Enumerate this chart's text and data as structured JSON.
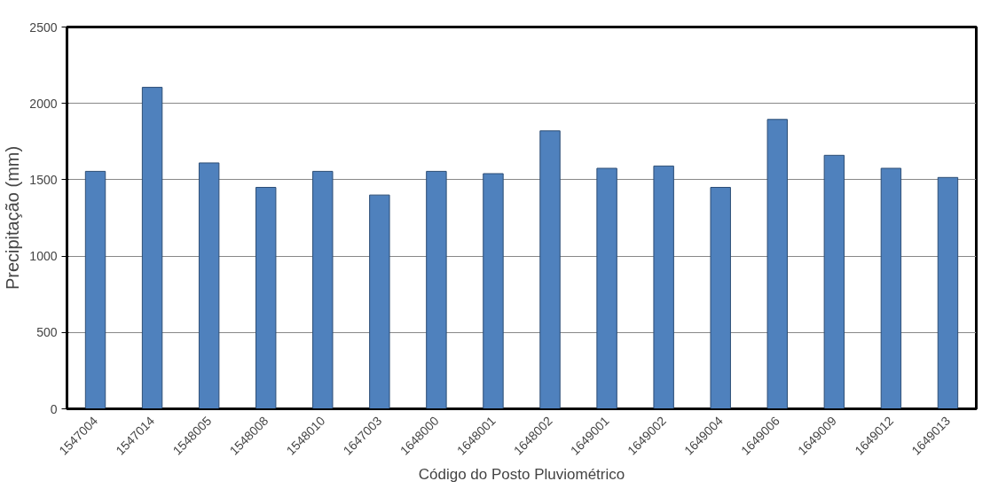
{
  "chart_data": {
    "type": "bar",
    "xlabel": "Código do Posto Pluviométrico",
    "ylabel": "Precipitação (mm)",
    "categories": [
      "1547004",
      "1547014",
      "1548005",
      "1548008",
      "1548010",
      "1647003",
      "1648000",
      "1648001",
      "1648002",
      "1649001",
      "1649002",
      "1649004",
      "1649006",
      "1649009",
      "1649012",
      "1649013"
    ],
    "values": [
      1555,
      2105,
      1610,
      1450,
      1555,
      1400,
      1555,
      1540,
      1820,
      1575,
      1590,
      1450,
      1895,
      1660,
      1575,
      1515
    ],
    "color": "#4f81bd",
    "ylim": [
      0,
      2500
    ],
    "yticks": [
      0,
      500,
      1000,
      1500,
      2000,
      2500
    ],
    "grid": "y"
  }
}
